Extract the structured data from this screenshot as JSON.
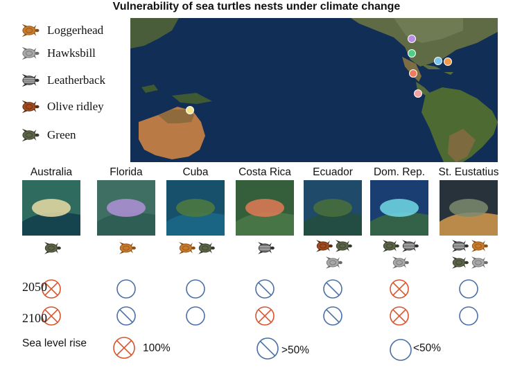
{
  "title": "Vulnerability of sea turtles nests under climate change",
  "legend": [
    {
      "name": "Loggerhead",
      "icon": "loggerhead-turtle-icon",
      "color": "#c77a2a"
    },
    {
      "name": "Hawksbill",
      "icon": "hawksbill-turtle-icon",
      "color": "#8a8a8a"
    },
    {
      "name": "Leatherback",
      "icon": "leatherback-turtle-icon",
      "color": "#555555"
    },
    {
      "name": "Olive ridley",
      "icon": "olive-ridley-turtle-icon",
      "color": "#a14a1e"
    },
    {
      "name": "Green",
      "icon": "green-turtle-icon",
      "color": "#4f5a3c"
    }
  ],
  "map_markers": [
    {
      "site": "Australia",
      "color": "#f3e58c"
    },
    {
      "site": "Florida",
      "color": "#b98ee6"
    },
    {
      "site": "Cuba",
      "color": "#4fcf86"
    },
    {
      "site": "Costa Rica",
      "color": "#f07a5e"
    },
    {
      "site": "Ecuador",
      "color": "#f4a3a3"
    },
    {
      "site": "Dom. Rep.",
      "color": "#79c3ef"
    },
    {
      "site": "St. Eustatius",
      "color": "#f39a4a"
    }
  ],
  "sites": [
    {
      "name": "Australia",
      "turtles": [
        "green"
      ],
      "y2050": "high",
      "y2100": "high"
    },
    {
      "name": "Florida",
      "turtles": [
        "loggerhead"
      ],
      "y2050": "low",
      "y2100": "medium"
    },
    {
      "name": "Cuba",
      "turtles": [
        "loggerhead",
        "green"
      ],
      "y2050": "low",
      "y2100": "low"
    },
    {
      "name": "Costa Rica",
      "turtles": [
        "leatherback"
      ],
      "y2050": "medium",
      "y2100": "high"
    },
    {
      "name": "Ecuador",
      "turtles": [
        "olive-ridley",
        "green",
        "hawksbill"
      ],
      "y2050": "medium",
      "y2100": "medium"
    },
    {
      "name": "Dom. Rep.",
      "turtles": [
        "green",
        "leatherback",
        "hawksbill"
      ],
      "y2050": "high",
      "y2100": "high"
    },
    {
      "name": "St. Eustatius",
      "turtles": [
        "leatherback",
        "loggerhead",
        "green",
        "hawksbill"
      ],
      "y2050": "low",
      "y2100": "low"
    }
  ],
  "years": [
    "2050",
    "2100"
  ],
  "slr_key": {
    "title": "Sea level rise",
    "items": [
      {
        "level": "high",
        "label": "100%"
      },
      {
        "level": "medium",
        "label": ">50%"
      },
      {
        "level": "low",
        "label": "<50%"
      }
    ]
  },
  "colors": {
    "high": "#d9532c",
    "outline": "#4a6fa5"
  }
}
